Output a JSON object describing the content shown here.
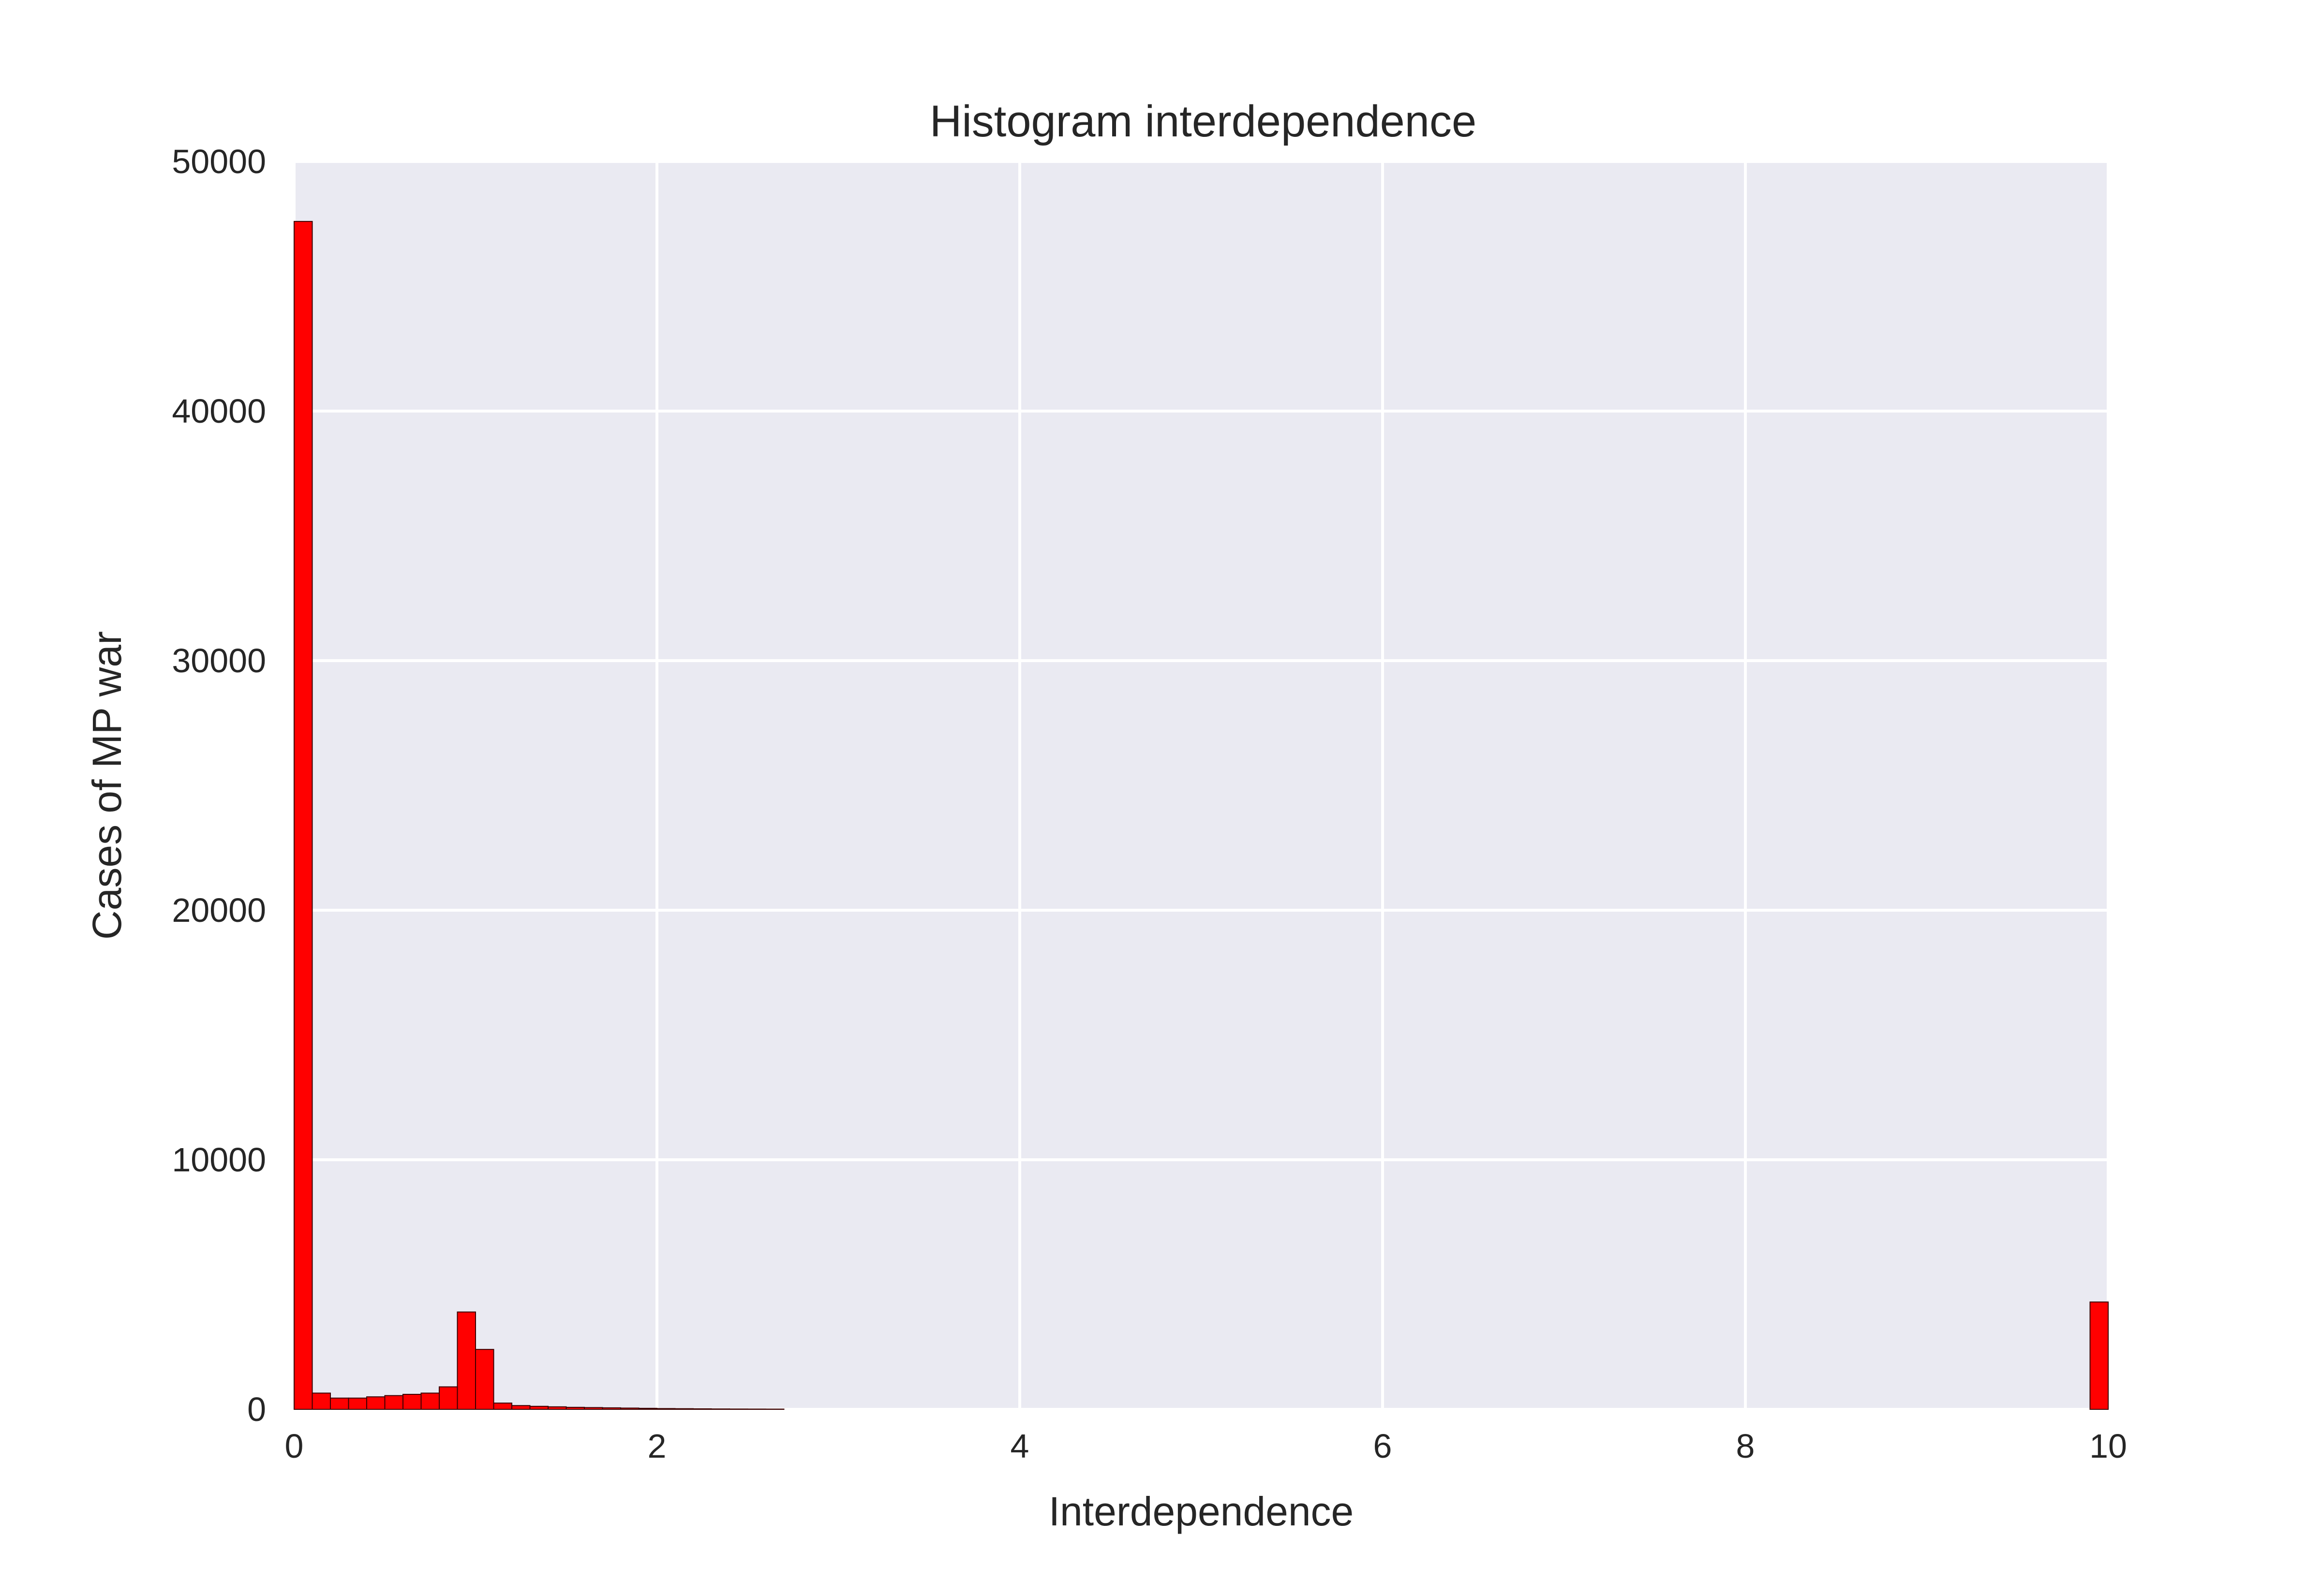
{
  "chart_data": {
    "type": "bar",
    "title": "Histogram interdependence",
    "xlabel": "Interdependence",
    "ylabel": "Cases of MP war",
    "xlim": [
      0,
      10
    ],
    "ylim": [
      0,
      50000
    ],
    "xticks": [
      0,
      2,
      4,
      6,
      8,
      10
    ],
    "xtick_labels": [
      "0",
      "2",
      "4",
      "6",
      "8",
      "10"
    ],
    "yticks": [
      0,
      10000,
      20000,
      30000,
      40000,
      50000
    ],
    "ytick_labels": [
      "0",
      "10000",
      "20000",
      "30000",
      "40000",
      "50000"
    ],
    "grid": true,
    "bin_width": 0.1,
    "bin_starts": [
      0.0,
      0.1,
      0.2,
      0.3,
      0.4,
      0.5,
      0.6,
      0.7,
      0.8,
      0.9,
      1.0,
      1.1,
      1.2,
      1.3,
      1.4,
      1.5,
      1.6,
      1.7,
      1.8,
      1.9,
      2.0,
      2.1,
      2.2,
      2.3,
      2.4,
      2.5,
      2.6,
      9.9
    ],
    "values": [
      47600,
      650,
      450,
      450,
      500,
      550,
      600,
      650,
      900,
      3900,
      2400,
      250,
      150,
      120,
      100,
      80,
      70,
      60,
      50,
      40,
      30,
      25,
      20,
      15,
      12,
      10,
      8,
      4300
    ],
    "colors": {
      "bar": "#ff0000",
      "bar_edge": "#3a0000",
      "plot_bg": "#eaeaf2",
      "grid": "#ffffff",
      "text": "#262626"
    }
  }
}
